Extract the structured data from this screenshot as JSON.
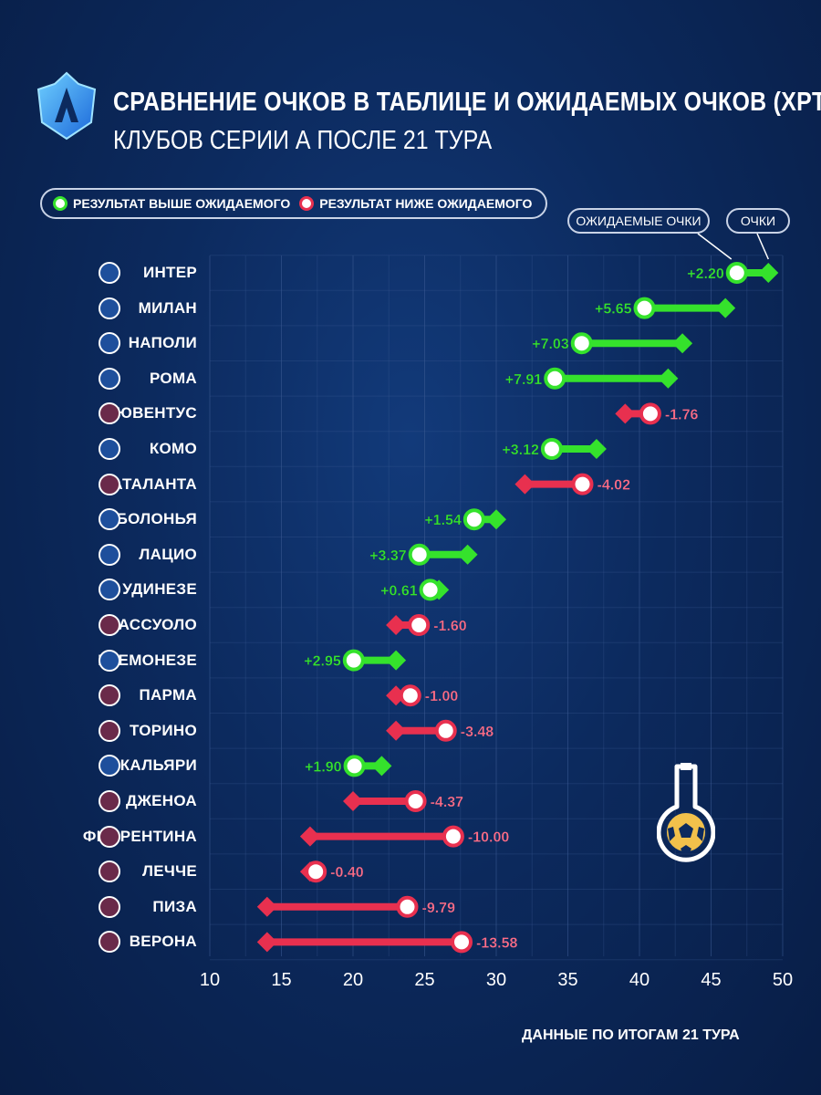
{
  "header": {
    "title": "СРАВНЕНИЕ ОЧКОВ В ТАБЛИЦЕ И ОЖИДАЕМЫХ ОЧКОВ (XPTS)",
    "subtitle": "КЛУБОВ СЕРИИ А ПОСЛЕ 21 ТУРА"
  },
  "legend": {
    "above": "РЕЗУЛЬТАТ ВЫШЕ ОЖИДАЕМОГО",
    "below": "РЕЗУЛЬТАТ НИЖЕ ОЖИДАЕМОГО"
  },
  "callouts": {
    "expected": "ОЖИДАЕМЫЕ ОЧКИ",
    "points": "ОЧКИ"
  },
  "footer": "ДАННЫЕ ПО ИТОГАМ 21 ТУРА",
  "colors": {
    "above": "#35e22c",
    "below": "#e8304f",
    "background": "#0c2a5e",
    "grid": "#3b5a93"
  },
  "chart_data": {
    "type": "dumbbell",
    "title": "СРАВНЕНИЕ ОЧКОВ В ТАБЛИЦЕ И ОЖИДАЕМЫХ ОЧКОВ (XPTS)",
    "xlim": [
      10,
      50
    ],
    "xticks": [
      10,
      15,
      20,
      25,
      30,
      35,
      40,
      45,
      50
    ],
    "grid": true,
    "legend_position": "top-left",
    "series": [
      {
        "name": "ОЧКИ",
        "marker": "diamond"
      },
      {
        "name": "ОЖИДАЕМЫЕ ОЧКИ",
        "marker": "circle"
      }
    ],
    "teams": [
      {
        "name": "ИНТЕР",
        "points": 49,
        "xpts": 46.8,
        "diff": "+2.20",
        "icon": "inter-crest"
      },
      {
        "name": "МИЛАН",
        "points": 46,
        "xpts": 40.35,
        "diff": "+5.65",
        "icon": "milan-crest"
      },
      {
        "name": "НАПОЛИ",
        "points": 43,
        "xpts": 35.97,
        "diff": "+7.03",
        "icon": "napoli-crest"
      },
      {
        "name": "РОМА",
        "points": 42,
        "xpts": 34.09,
        "diff": "+7.91",
        "icon": "roma-crest"
      },
      {
        "name": "ЮВЕНТУС",
        "points": 39,
        "xpts": 40.76,
        "diff": "-1.76",
        "icon": "juventus-crest"
      },
      {
        "name": "КОМО",
        "points": 37,
        "xpts": 33.88,
        "diff": "+3.12",
        "icon": "como-crest"
      },
      {
        "name": "АТАЛАНТА",
        "points": 32,
        "xpts": 36.02,
        "diff": "-4.02",
        "icon": "atalanta-crest"
      },
      {
        "name": "БОЛОНЬЯ",
        "points": 30,
        "xpts": 28.46,
        "diff": "+1.54",
        "icon": "bologna-crest"
      },
      {
        "name": "ЛАЦИО",
        "points": 28,
        "xpts": 24.63,
        "diff": "+3.37",
        "icon": "lazio-crest"
      },
      {
        "name": "УДИНЕЗЕ",
        "points": 26,
        "xpts": 25.39,
        "diff": "+0.61",
        "icon": "udinese-crest"
      },
      {
        "name": "САССУОЛО",
        "points": 23,
        "xpts": 24.6,
        "diff": "-1.60",
        "icon": "sassuolo-crest"
      },
      {
        "name": "КРЕМОНЕЗЕ",
        "points": 23,
        "xpts": 20.05,
        "diff": "+2.95",
        "icon": "cremonese-crest"
      },
      {
        "name": "ПАРМА",
        "points": 23,
        "xpts": 24.0,
        "diff": "-1.00",
        "icon": "parma-crest"
      },
      {
        "name": "ТОРИНО",
        "points": 23,
        "xpts": 26.48,
        "diff": "-3.48",
        "icon": "torino-crest"
      },
      {
        "name": "КАЛЬЯРИ",
        "points": 22,
        "xpts": 20.1,
        "diff": "+1.90",
        "icon": "cagliari-crest"
      },
      {
        "name": "ДЖЕНОА",
        "points": 20,
        "xpts": 24.37,
        "diff": "-4.37",
        "icon": "genoa-crest"
      },
      {
        "name": "ФИОРЕНТИНА",
        "points": 17,
        "xpts": 27.0,
        "diff": "-10.00",
        "icon": "fiorentina-crest"
      },
      {
        "name": "ЛЕЧЧЕ",
        "points": 17,
        "xpts": 17.4,
        "diff": "-0.40",
        "icon": "lecce-crest"
      },
      {
        "name": "ПИЗА",
        "points": 14,
        "xpts": 23.79,
        "diff": "-9.79",
        "icon": "pisa-crest"
      },
      {
        "name": "ВЕРОНА",
        "points": 14,
        "xpts": 27.58,
        "diff": "-13.58",
        "icon": "verona-crest"
      }
    ]
  }
}
